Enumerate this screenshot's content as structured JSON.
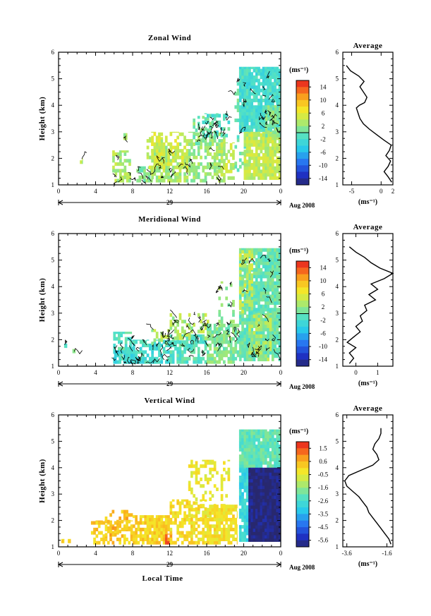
{
  "chart_data": [
    {
      "type": "heatmap",
      "title": "Zonal Wind",
      "ylabel": "Height (km)",
      "xlabel": "",
      "x_ticks": [
        "0",
        "4",
        "8",
        "12",
        "16",
        "20",
        "0"
      ],
      "y_ticks": [
        "1",
        "2",
        "3",
        "4",
        "5",
        "6"
      ],
      "ylim": [
        1,
        6
      ],
      "xlim": [
        0,
        24
      ],
      "date_day": "29",
      "date_label": "Aug 2008",
      "colorbar": {
        "label": "(ms⁻¹)",
        "ticks": [
          "14",
          "10",
          "6",
          "2",
          "-2",
          "-6",
          "-10",
          "-14"
        ],
        "range": [
          -16,
          16
        ]
      },
      "regions": [
        {
          "x": [
            2.3,
            2.6
          ],
          "y": [
            1.8,
            2.0
          ],
          "value": 3,
          "density": 0.9
        },
        {
          "x": [
            5.8,
            7.8
          ],
          "y": [
            1.1,
            2.3
          ],
          "value": 3,
          "density": 0.55
        },
        {
          "x": [
            7.0,
            7.4
          ],
          "y": [
            2.7,
            2.95
          ],
          "value": 2,
          "density": 0.8
        },
        {
          "x": [
            8.4,
            10.2
          ],
          "y": [
            1.1,
            1.7
          ],
          "value": 1,
          "density": 0.6
        },
        {
          "x": [
            9.5,
            11.5
          ],
          "y": [
            1.6,
            2.8
          ],
          "value": 4,
          "density": 0.35
        },
        {
          "x": [
            10.0,
            14.0
          ],
          "y": [
            1.1,
            2.6
          ],
          "value": 3,
          "density": 0.7
        },
        {
          "x": [
            10.0,
            14.0
          ],
          "y": [
            1.6,
            3.0
          ],
          "value": 5,
          "density": 0.35
        },
        {
          "x": [
            14.0,
            18.0
          ],
          "y": [
            1.1,
            3.0
          ],
          "value": 2,
          "density": 0.6
        },
        {
          "x": [
            14.5,
            16.5
          ],
          "y": [
            2.5,
            3.6
          ],
          "value": 1,
          "density": 0.35
        },
        {
          "x": [
            15.5,
            18.5
          ],
          "y": [
            2.8,
            3.7
          ],
          "value": -1,
          "density": 0.45
        },
        {
          "x": [
            17.0,
            19.0
          ],
          "y": [
            1.2,
            2.6
          ],
          "value": 4,
          "density": 0.5
        },
        {
          "x": [
            19.0,
            20.5
          ],
          "y": [
            1.5,
            5.0
          ],
          "value": 0,
          "density": 0.35
        },
        {
          "x": [
            19.5,
            24.0
          ],
          "y": [
            3.0,
            5.45
          ],
          "value": -2,
          "density": 0.92
        },
        {
          "x": [
            20.0,
            24.0
          ],
          "y": [
            1.2,
            3.0
          ],
          "value": 4,
          "density": 0.9
        },
        {
          "x": [
            22.3,
            24.0
          ],
          "y": [
            2.8,
            4.0
          ],
          "value": 1,
          "density": 0.85
        }
      ],
      "average_profile": {
        "title": "Average",
        "unit": "(ms⁻¹)",
        "x_ticks": [
          "-5",
          "0",
          "2"
        ],
        "xlim": [
          -6.5,
          2.0
        ],
        "y_ticks": [
          "1",
          "2",
          "3",
          "4",
          "5",
          "6"
        ],
        "heights": [
          1.1,
          1.3,
          1.5,
          1.7,
          1.9,
          2.1,
          2.3,
          2.5,
          2.7,
          2.9,
          3.1,
          3.3,
          3.5,
          3.7,
          3.9,
          4.0,
          4.1,
          4.3,
          4.5,
          4.7,
          4.9,
          5.1,
          5.3,
          5.5
        ],
        "values": [
          1.8,
          1.2,
          0.5,
          1.2,
          1.6,
          0.8,
          1.4,
          1.7,
          0.4,
          -0.8,
          -2.0,
          -3.0,
          -3.6,
          -3.9,
          -4.2,
          -3.7,
          -2.8,
          -2.4,
          -3.0,
          -3.6,
          -2.9,
          -3.8,
          -5.2,
          -5.9
        ]
      }
    },
    {
      "type": "heatmap",
      "title": "Meridional Wind",
      "ylabel": "Height (km)",
      "xlabel": "",
      "x_ticks": [
        "0",
        "4",
        "8",
        "12",
        "16",
        "20",
        "0"
      ],
      "y_ticks": [
        "1",
        "2",
        "3",
        "4",
        "5",
        "6"
      ],
      "ylim": [
        1,
        6
      ],
      "xlim": [
        0,
        24
      ],
      "date_day": "29",
      "date_label": "Aug 2008",
      "colorbar": {
        "label": "(ms⁻¹)",
        "ticks": [
          "14",
          "10",
          "6",
          "2",
          "-2",
          "-6",
          "-10",
          "-14"
        ],
        "range": [
          -16,
          16
        ]
      },
      "regions": [
        {
          "x": [
            0.6,
            0.9
          ],
          "y": [
            1.7,
            1.85
          ],
          "value": -2,
          "density": 0.9
        },
        {
          "x": [
            1.5,
            1.8
          ],
          "y": [
            1.5,
            1.65
          ],
          "value": 3,
          "density": 0.9
        },
        {
          "x": [
            5.9,
            8.0
          ],
          "y": [
            1.1,
            2.3
          ],
          "value": -1,
          "density": 0.6
        },
        {
          "x": [
            6.0,
            9.0
          ],
          "y": [
            1.1,
            1.6
          ],
          "value": -3,
          "density": 0.7
        },
        {
          "x": [
            8.0,
            12.0
          ],
          "y": [
            1.1,
            2.0
          ],
          "value": -2,
          "density": 0.7
        },
        {
          "x": [
            10.0,
            12.0
          ],
          "y": [
            1.8,
            2.4
          ],
          "value": 3,
          "density": 0.4
        },
        {
          "x": [
            12.0,
            16.0
          ],
          "y": [
            1.1,
            2.2
          ],
          "value": -1,
          "density": 0.7
        },
        {
          "x": [
            12.0,
            16.5
          ],
          "y": [
            2.0,
            3.0
          ],
          "value": 3,
          "density": 0.35
        },
        {
          "x": [
            16.0,
            19.5
          ],
          "y": [
            1.1,
            2.6
          ],
          "value": 1,
          "density": 0.65
        },
        {
          "x": [
            17.0,
            19.0
          ],
          "y": [
            2.5,
            4.2
          ],
          "value": 2,
          "density": 0.3
        },
        {
          "x": [
            19.5,
            24.0
          ],
          "y": [
            1.2,
            5.45
          ],
          "value": 0,
          "density": 0.9
        },
        {
          "x": [
            19.5,
            21.0
          ],
          "y": [
            3.0,
            5.45
          ],
          "value": 4,
          "density": 0.5
        },
        {
          "x": [
            20.5,
            23.0
          ],
          "y": [
            1.2,
            3.0
          ],
          "value": 3,
          "density": 0.6
        }
      ],
      "average_profile": {
        "title": "Average",
        "unit": "(ms⁻¹)",
        "x_ticks": [
          "0",
          "1"
        ],
        "xlim": [
          -0.6,
          1.7
        ],
        "y_ticks": [
          "1",
          "2",
          "3",
          "4",
          "5",
          "6"
        ],
        "heights": [
          1.1,
          1.3,
          1.5,
          1.7,
          1.9,
          2.1,
          2.3,
          2.5,
          2.7,
          2.9,
          3.1,
          3.3,
          3.5,
          3.7,
          3.9,
          4.1,
          4.3,
          4.5,
          4.7,
          4.9,
          5.1,
          5.3,
          5.5
        ],
        "values": [
          -0.3,
          -0.1,
          -0.3,
          0.0,
          -0.4,
          -0.1,
          0.2,
          0.0,
          0.3,
          0.2,
          0.5,
          0.4,
          0.9,
          0.6,
          1.0,
          0.7,
          1.3,
          1.7,
          1.1,
          0.7,
          0.4,
          0.0,
          -0.3
        ]
      }
    },
    {
      "type": "heatmap",
      "title": "Vertical Wind",
      "ylabel": "Height (km)",
      "xlabel": "Local Time",
      "x_ticks": [
        "0",
        "4",
        "8",
        "12",
        "16",
        "20",
        "0"
      ],
      "y_ticks": [
        "1",
        "2",
        "3",
        "4",
        "5",
        "6"
      ],
      "ylim": [
        1,
        6
      ],
      "xlim": [
        0,
        24
      ],
      "date_day": "29",
      "date_label": "Aug 2008",
      "colorbar": {
        "label": "(ms⁻¹)",
        "ticks": [
          "1.5",
          "0.6",
          "-0.5",
          "-1.6",
          "-2.6",
          "-3.5",
          "-4.5",
          "-5.6"
        ],
        "range": [
          -6.0,
          2.0
        ]
      },
      "regions": [
        {
          "x": [
            0.3,
            0.6
          ],
          "y": [
            1.15,
            1.3
          ],
          "value": 0.0,
          "density": 0.9
        },
        {
          "x": [
            1.0,
            1.3
          ],
          "y": [
            1.15,
            1.3
          ],
          "value": 0.0,
          "density": 0.9
        },
        {
          "x": [
            3.5,
            8.0
          ],
          "y": [
            1.1,
            2.0
          ],
          "value": 0.2,
          "density": 0.55
        },
        {
          "x": [
            5.0,
            8.0
          ],
          "y": [
            1.4,
            2.4
          ],
          "value": 0.4,
          "density": 0.35
        },
        {
          "x": [
            8.0,
            12.0
          ],
          "y": [
            1.1,
            2.2
          ],
          "value": 0.1,
          "density": 0.8
        },
        {
          "x": [
            11.5,
            12.5
          ],
          "y": [
            1.1,
            1.5
          ],
          "value": 1.2,
          "density": 0.7
        },
        {
          "x": [
            12.0,
            16.0
          ],
          "y": [
            1.1,
            2.8
          ],
          "value": -0.1,
          "density": 0.6
        },
        {
          "x": [
            14.0,
            18.5
          ],
          "y": [
            2.0,
            4.3
          ],
          "value": -0.4,
          "density": 0.35
        },
        {
          "x": [
            16.0,
            19.3
          ],
          "y": [
            1.1,
            2.6
          ],
          "value": -0.2,
          "density": 0.8
        },
        {
          "x": [
            19.5,
            24.0
          ],
          "y": [
            4.0,
            5.45
          ],
          "value": -2.1,
          "density": 0.95
        },
        {
          "x": [
            19.5,
            20.5
          ],
          "y": [
            1.2,
            4.0
          ],
          "value": -2.8,
          "density": 0.85
        },
        {
          "x": [
            20.5,
            24.0
          ],
          "y": [
            1.2,
            4.0
          ],
          "value": -5.9,
          "density": 1.0
        }
      ],
      "average_profile": {
        "title": "Average",
        "unit": "(ms⁻¹)",
        "x_ticks": [
          "-3.6",
          "-1.6"
        ],
        "xlim": [
          -3.8,
          -1.3
        ],
        "y_ticks": [
          "1",
          "2",
          "3",
          "4",
          "5",
          "6"
        ],
        "heights": [
          1.1,
          1.3,
          1.5,
          1.7,
          1.9,
          2.1,
          2.3,
          2.5,
          2.7,
          2.9,
          3.1,
          3.3,
          3.5,
          3.7,
          3.9,
          4.1,
          4.3,
          4.5,
          4.7,
          4.9,
          5.1,
          5.3,
          5.5
        ],
        "values": [
          -1.4,
          -1.5,
          -1.7,
          -1.9,
          -2.1,
          -2.3,
          -2.5,
          -2.6,
          -2.8,
          -3.0,
          -3.3,
          -3.6,
          -3.7,
          -3.5,
          -2.9,
          -2.3,
          -2.0,
          -2.1,
          -2.3,
          -2.2,
          -2.0,
          -1.9,
          -1.9
        ]
      }
    }
  ]
}
